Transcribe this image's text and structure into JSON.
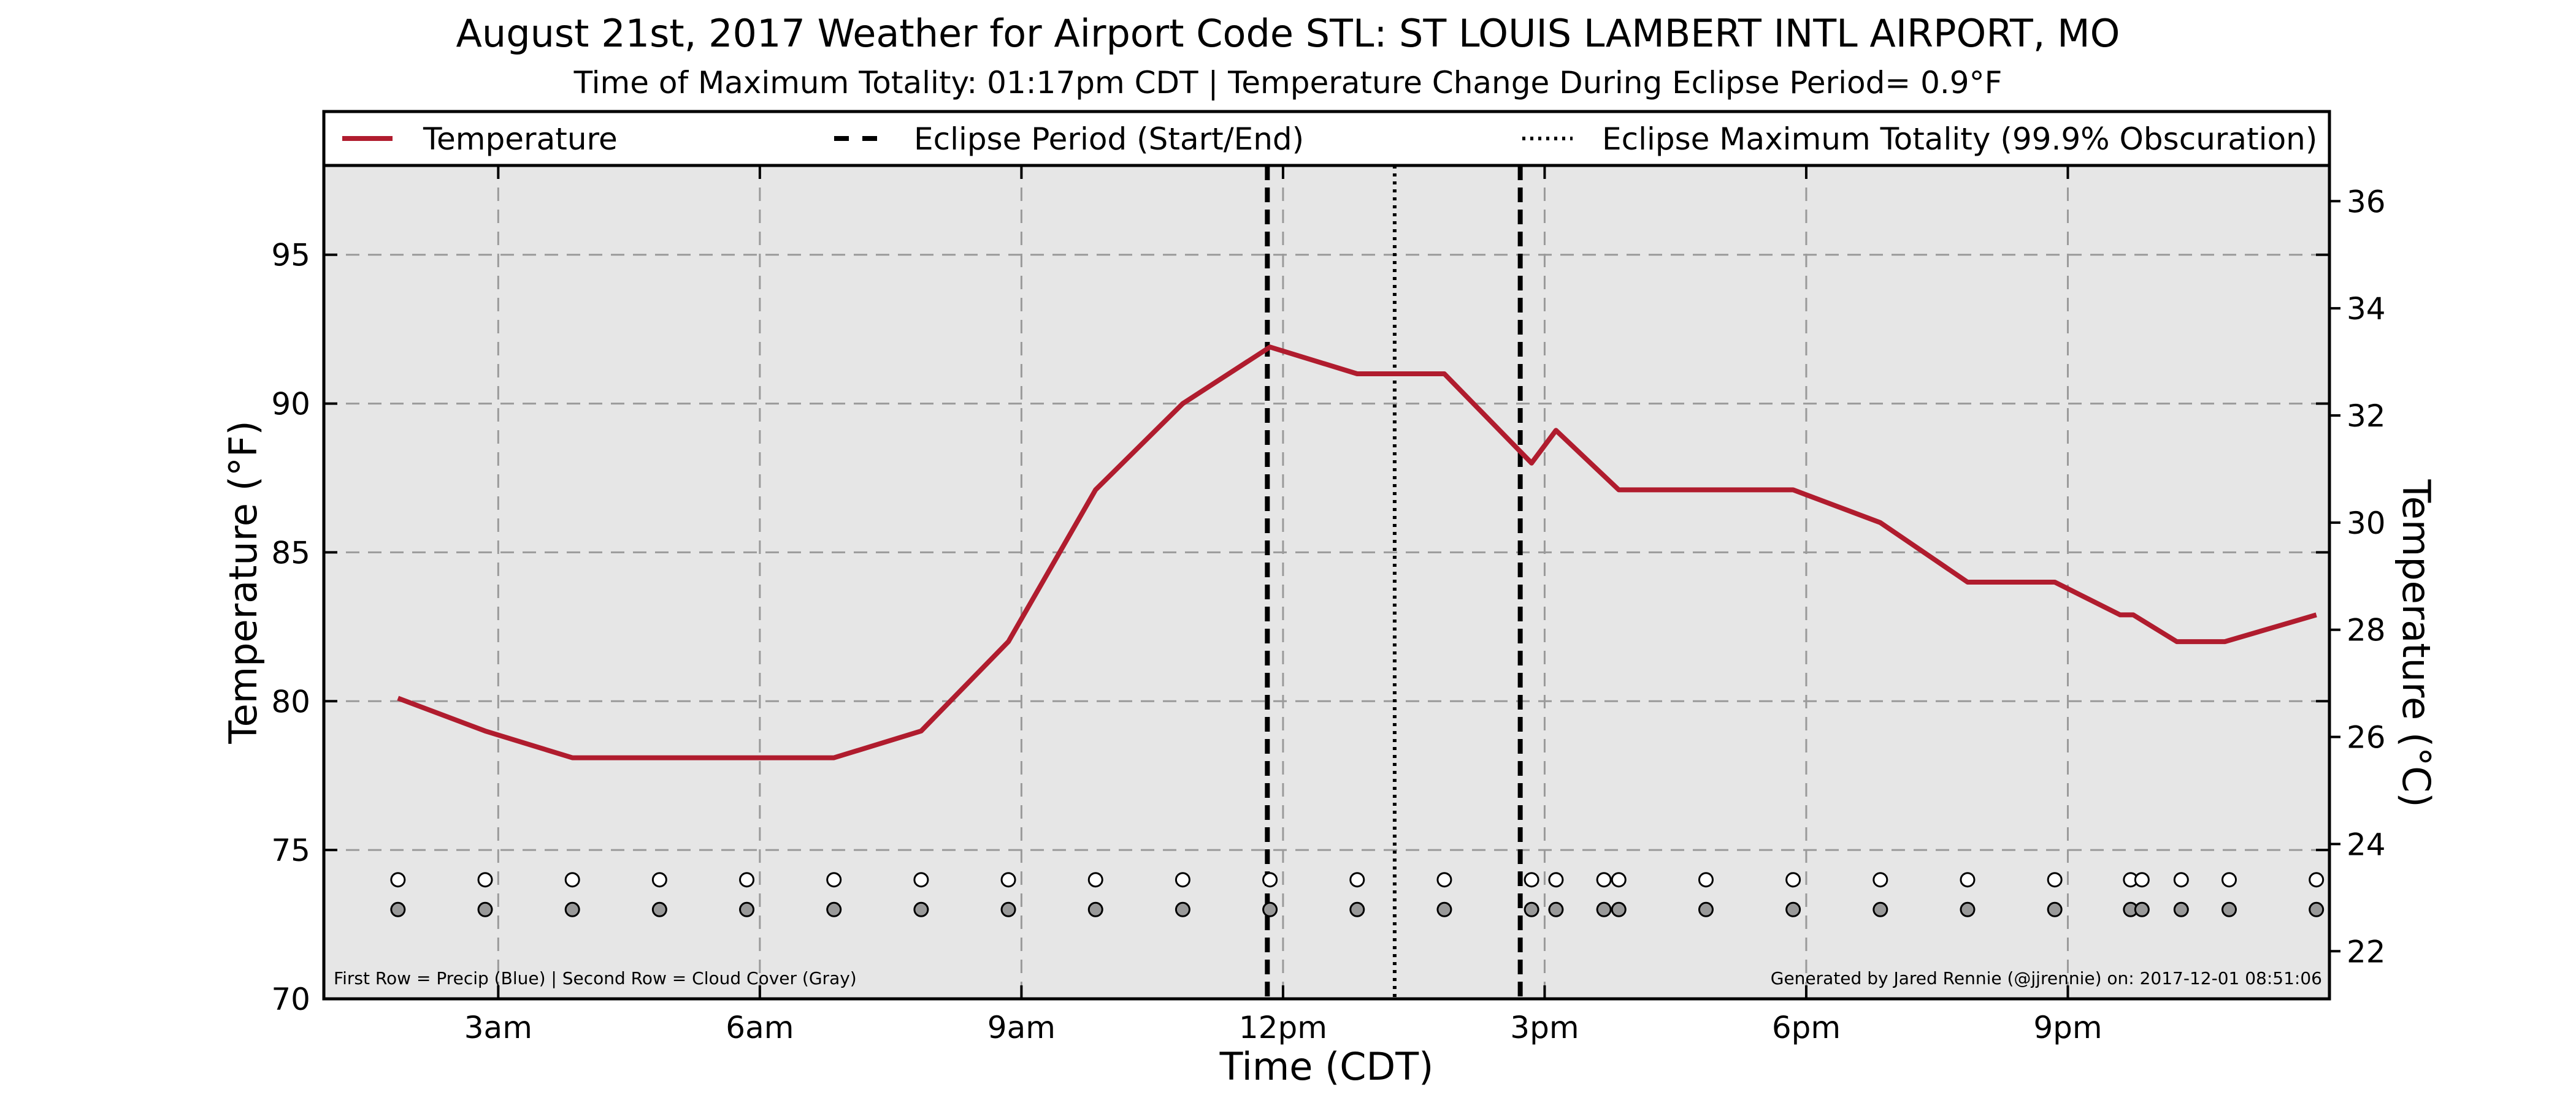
{
  "chart_data": {
    "type": "line",
    "title": "August 21st, 2017 Weather for Airport Code STL: ST LOUIS LAMBERT INTL AIRPORT, MO",
    "subtitle": "Time of Maximum Totality: 01:17pm CDT | Temperature Change During Eclipse Period= 0.9°F",
    "xlabel": "Time (CDT)",
    "ylabel": "Temperature (°F)",
    "ylabel_right": "Temperature (°C)",
    "xlim": [
      1.0,
      24.0
    ],
    "ylim": [
      70,
      98
    ],
    "ylim_right_c": [
      21.11,
      36.67
    ],
    "x_ticks": [
      {
        "x": 3,
        "label": "3am"
      },
      {
        "x": 6,
        "label": "6am"
      },
      {
        "x": 9,
        "label": "9am"
      },
      {
        "x": 12,
        "label": "12pm"
      },
      {
        "x": 15,
        "label": "3pm"
      },
      {
        "x": 18,
        "label": "6pm"
      },
      {
        "x": 21,
        "label": "9pm"
      }
    ],
    "y_ticks": [
      70,
      75,
      80,
      85,
      90,
      95
    ],
    "y_ticks_right": [
      22,
      24,
      26,
      28,
      30,
      32,
      34,
      36
    ],
    "grid": true,
    "legend_position": "top",
    "legend": [
      {
        "label": "Temperature",
        "style": "solid",
        "color": "#b01c2e"
      },
      {
        "label": "Eclipse Period (Start/End)",
        "style": "dashed",
        "color": "#000000"
      },
      {
        "label": "Eclipse Maximum Totality (99.9% Obscuration)",
        "style": "dotted",
        "color": "#000000"
      }
    ],
    "series": [
      {
        "name": "Temperature",
        "color": "#b01c2e",
        "x": [
          1.85,
          2.85,
          3.85,
          4.85,
          5.85,
          6.85,
          7.85,
          8.85,
          9.85,
          10.85,
          11.85,
          12.85,
          13.85,
          14.85,
          15.13,
          15.85,
          16.13,
          16.85,
          17.85,
          18.85,
          19.85,
          20.85,
          21.6,
          21.75,
          22.25,
          22.8,
          23.85
        ],
        "y": [
          80.1,
          79.0,
          78.1,
          78.1,
          78.1,
          78.1,
          79.0,
          82.0,
          87.1,
          90.0,
          91.9,
          91.0,
          91.0,
          88.0,
          89.1,
          87.1,
          87.1,
          87.1,
          87.1,
          86.0,
          84.0,
          84.0,
          82.9,
          82.9,
          82.0,
          82.0,
          82.9
        ]
      }
    ],
    "eclipse_start": 11.82,
    "eclipse_end": 14.72,
    "eclipse_max": 13.28,
    "precip_row_y": 74,
    "cloud_row_y": 73,
    "precip_markers_x": [
      1.85,
      2.85,
      3.85,
      4.85,
      5.85,
      6.85,
      7.85,
      8.85,
      9.85,
      10.85,
      11.85,
      12.85,
      13.85,
      14.85,
      15.13,
      15.68,
      15.85,
      16.85,
      17.85,
      18.85,
      19.85,
      20.85,
      21.72,
      21.85,
      22.3,
      22.85,
      23.85
    ],
    "cloud_markers_x": [
      1.85,
      2.85,
      3.85,
      4.85,
      5.85,
      6.85,
      7.85,
      8.85,
      9.85,
      10.85,
      11.85,
      12.85,
      13.85,
      14.85,
      15.13,
      15.68,
      15.85,
      16.85,
      17.85,
      18.85,
      19.85,
      20.85,
      21.72,
      21.85,
      22.3,
      22.85,
      23.85
    ],
    "precip_color": "#ffffff",
    "cloud_color": "#999999",
    "footnote_left": "First Row = Precip (Blue) | Second Row = Cloud Cover (Gray)",
    "footnote_right": "Generated by Jared Rennie (@jjrennie) on: 2017-12-01 08:51:06"
  }
}
